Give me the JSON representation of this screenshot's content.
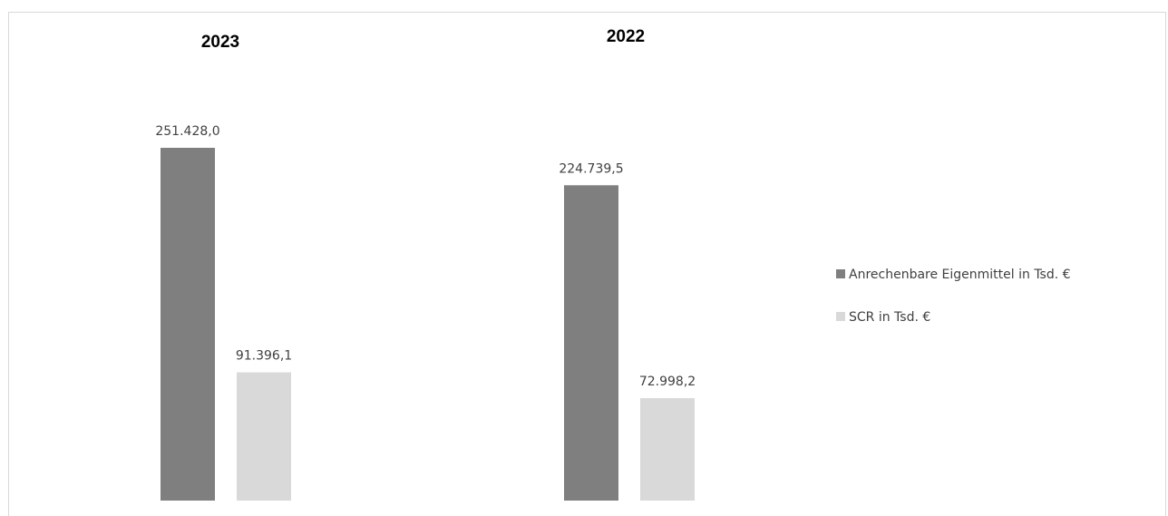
{
  "chart_data": {
    "type": "bar",
    "categories": [
      "2023",
      "2022"
    ],
    "series": [
      {
        "name": "Anrechenbare Eigenmittel in Tsd. €",
        "values": [
          251428.0,
          224739.5
        ],
        "labels": [
          "251.428,0",
          "224.739,5"
        ],
        "color": "#7f7f7f"
      },
      {
        "name": "SCR in Tsd. €",
        "values": [
          91396.1,
          72998.2
        ],
        "labels": [
          "91.396,1",
          "72.998,2"
        ],
        "color": "#d9d9d9"
      }
    ],
    "title": "",
    "xlabel": "",
    "ylabel": "",
    "ylim": [
      0,
      251428.0
    ],
    "grid": false,
    "legend": "right"
  }
}
